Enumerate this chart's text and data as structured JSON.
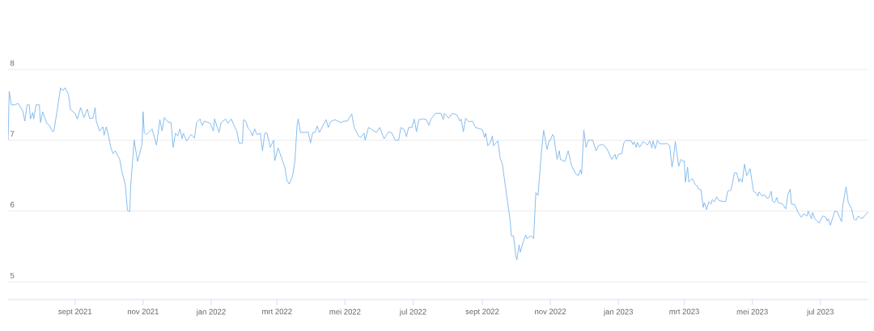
{
  "chart_data": {
    "type": "line",
    "x": [
      "2021-07-03",
      "2021-07-04",
      "2021-07-06",
      "2021-07-09",
      "2021-07-12",
      "2021-07-16",
      "2021-07-18",
      "2021-07-20",
      "2021-07-22",
      "2021-07-23",
      "2021-07-25",
      "2021-07-26",
      "2021-07-28",
      "2021-07-31",
      "2021-08-01",
      "2021-08-03",
      "2021-08-07",
      "2021-08-09",
      "2021-08-12",
      "2021-08-13",
      "2021-08-16",
      "2021-08-19",
      "2021-08-21",
      "2021-08-23",
      "2021-08-26",
      "2021-08-28",
      "2021-09-01",
      "2021-09-03",
      "2021-09-06",
      "2021-09-09",
      "2021-09-12",
      "2021-09-14",
      "2021-09-17",
      "2021-09-19",
      "2021-09-20",
      "2021-09-23",
      "2021-09-26",
      "2021-09-27",
      "2021-09-29",
      "2021-10-01",
      "2021-10-03",
      "2021-10-05",
      "2021-10-07",
      "2021-10-11",
      "2021-10-13",
      "2021-10-16",
      "2021-10-18",
      "2021-10-20",
      "2021-10-21",
      "2021-10-24",
      "2021-10-27",
      "2021-10-31",
      "2021-11-01",
      "2021-11-02",
      "2021-11-04",
      "2021-11-09",
      "2021-11-13",
      "2021-11-16",
      "2021-11-18",
      "2021-11-20",
      "2021-11-23",
      "2021-11-26",
      "2021-11-28",
      "2021-11-30",
      "2021-12-02",
      "2021-12-04",
      "2021-12-06",
      "2021-12-07",
      "2021-12-10",
      "2021-12-14",
      "2021-12-17",
      "2021-12-19",
      "2021-12-22",
      "2021-12-24",
      "2021-12-26",
      "2021-12-31",
      "2022-01-03",
      "2022-01-04",
      "2022-01-08",
      "2022-01-10",
      "2022-01-14",
      "2022-01-16",
      "2022-01-19",
      "2022-01-22",
      "2022-01-24",
      "2022-01-26",
      "2022-01-29",
      "2022-01-30",
      "2022-02-01",
      "2022-02-03",
      "2022-02-05",
      "2022-02-07",
      "2022-02-09",
      "2022-02-11",
      "2022-02-14",
      "2022-02-16",
      "2022-02-18",
      "2022-02-20",
      "2022-02-23",
      "2022-02-26",
      "2022-02-27",
      "2022-03-02",
      "2022-03-06",
      "2022-03-08",
      "2022-03-10",
      "2022-03-12",
      "2022-03-15",
      "2022-03-17",
      "2022-03-19",
      "2022-03-20",
      "2022-03-22",
      "2022-03-27",
      "2022-03-29",
      "2022-03-31",
      "2022-04-02",
      "2022-04-04",
      "2022-04-06",
      "2022-04-08",
      "2022-04-14",
      "2022-04-16",
      "2022-04-18",
      "2022-04-22",
      "2022-04-27",
      "2022-04-30",
      "2022-05-03",
      "2022-05-07",
      "2022-05-09",
      "2022-05-13",
      "2022-05-15",
      "2022-05-18",
      "2022-05-19",
      "2022-05-22",
      "2022-05-25",
      "2022-05-29",
      "2022-06-01",
      "2022-06-05",
      "2022-06-09",
      "2022-06-12",
      "2022-06-15",
      "2022-06-18",
      "2022-06-20",
      "2022-06-23",
      "2022-06-25",
      "2022-06-27",
      "2022-06-30",
      "2022-07-02",
      "2022-07-04",
      "2022-07-06",
      "2022-07-10",
      "2022-07-13",
      "2022-07-15",
      "2022-07-17",
      "2022-07-21",
      "2022-07-26",
      "2022-07-28",
      "2022-07-29",
      "2022-08-02",
      "2022-08-05",
      "2022-08-09",
      "2022-08-12",
      "2022-08-13",
      "2022-08-15",
      "2022-08-17",
      "2022-08-20",
      "2022-08-23",
      "2022-08-26",
      "2022-08-30",
      "2022-09-01",
      "2022-09-03",
      "2022-09-04",
      "2022-09-06",
      "2022-09-08",
      "2022-09-10",
      "2022-09-11",
      "2022-09-15",
      "2022-09-17",
      "2022-09-19",
      "2022-09-23",
      "2022-09-26",
      "2022-09-27",
      "2022-09-29",
      "2022-10-01",
      "2022-10-02",
      "2022-10-04",
      "2022-10-05",
      "2022-10-08",
      "2022-10-10",
      "2022-10-11",
      "2022-10-15",
      "2022-10-17",
      "2022-10-19",
      "2022-10-21",
      "2022-10-22",
      "2022-10-24",
      "2022-10-26",
      "2022-10-29",
      "2022-10-31",
      "2022-11-01",
      "2022-11-03",
      "2022-11-04",
      "2022-11-07",
      "2022-11-09",
      "2022-11-10",
      "2022-11-14",
      "2022-11-17",
      "2022-11-20",
      "2022-11-24",
      "2022-11-26",
      "2022-11-28",
      "2022-11-29",
      "2022-12-01",
      "2022-12-03",
      "2022-12-05",
      "2022-12-09",
      "2022-12-12",
      "2022-12-14",
      "2022-12-17",
      "2022-12-19",
      "2022-12-22",
      "2022-12-26",
      "2022-12-29",
      "2022-12-30",
      "2023-01-01",
      "2023-01-04",
      "2023-01-06",
      "2023-01-08",
      "2023-01-11",
      "2023-01-12",
      "2023-01-14",
      "2023-01-15",
      "2023-01-17",
      "2023-01-18",
      "2023-01-20",
      "2023-01-23",
      "2023-01-25",
      "2023-01-27",
      "2023-01-29",
      "2023-01-31",
      "2023-02-01",
      "2023-02-03",
      "2023-02-05",
      "2023-02-07",
      "2023-02-12",
      "2023-02-13",
      "2023-02-16",
      "2023-02-18",
      "2023-02-19",
      "2023-02-21",
      "2023-02-24",
      "2023-02-26",
      "2023-02-28",
      "2023-03-01",
      "2023-03-02",
      "2023-03-04",
      "2023-03-05",
      "2023-03-08",
      "2023-03-11",
      "2023-03-13",
      "2023-03-14",
      "2023-03-16",
      "2023-03-18",
      "2023-03-19",
      "2023-03-21",
      "2023-03-23",
      "2023-03-25",
      "2023-03-26",
      "2023-03-28",
      "2023-03-30",
      "2023-04-01",
      "2023-04-03",
      "2023-04-07",
      "2023-04-09",
      "2023-04-12",
      "2023-04-15",
      "2023-04-17",
      "2023-04-19",
      "2023-04-20",
      "2023-04-22",
      "2023-04-24",
      "2023-04-26",
      "2023-04-29",
      "2023-05-02",
      "2023-05-04",
      "2023-05-06",
      "2023-05-07",
      "2023-05-10",
      "2023-05-12",
      "2023-05-14",
      "2023-05-16",
      "2023-05-18",
      "2023-05-19",
      "2023-05-21",
      "2023-05-23",
      "2023-05-24",
      "2023-05-28",
      "2023-05-31",
      "2023-06-02",
      "2023-06-04",
      "2023-06-05",
      "2023-06-08",
      "2023-06-11",
      "2023-06-14",
      "2023-06-16",
      "2023-06-19",
      "2023-06-20",
      "2023-06-23",
      "2023-06-24",
      "2023-06-26",
      "2023-06-30",
      "2023-07-03",
      "2023-07-06",
      "2023-07-07",
      "2023-07-08",
      "2023-07-10",
      "2023-07-14",
      "2023-07-16",
      "2023-07-20",
      "2023-07-21",
      "2023-07-24",
      "2023-07-26",
      "2023-07-29",
      "2023-07-31",
      "2023-08-02",
      "2023-08-04",
      "2023-08-06",
      "2023-08-08",
      "2023-08-10",
      "2023-08-13"
    ],
    "series": [
      {
        "color": "#7cb5ec",
        "values": [
          7.0,
          7.69,
          7.5,
          7.5,
          7.52,
          7.42,
          7.27,
          7.5,
          7.5,
          7.3,
          7.39,
          7.3,
          7.5,
          7.5,
          7.25,
          7.4,
          7.23,
          7.21,
          7.12,
          7.13,
          7.42,
          7.74,
          7.7,
          7.74,
          7.65,
          7.43,
          7.38,
          7.3,
          7.46,
          7.32,
          7.44,
          7.31,
          7.31,
          7.46,
          7.27,
          7.13,
          7.19,
          7.07,
          7.19,
          7.06,
          6.9,
          6.81,
          6.85,
          6.73,
          6.56,
          6.37,
          6.01,
          5.99,
          6.39,
          7.0,
          6.7,
          6.94,
          7.4,
          7.11,
          7.08,
          7.16,
          6.93,
          7.29,
          7.13,
          7.32,
          7.26,
          7.25,
          6.9,
          7.1,
          7.06,
          7.16,
          7.02,
          7.1,
          6.99,
          7.08,
          7.03,
          7.25,
          7.3,
          7.21,
          7.27,
          7.24,
          7.13,
          7.3,
          7.11,
          7.25,
          7.3,
          7.24,
          7.3,
          7.19,
          7.13,
          6.96,
          6.96,
          7.29,
          7.27,
          7.17,
          7.14,
          7.06,
          7.16,
          7.08,
          7.1,
          6.85,
          7.1,
          7.1,
          6.9,
          7.0,
          6.71,
          6.89,
          6.71,
          6.62,
          6.43,
          6.38,
          6.5,
          6.7,
          7.21,
          7.3,
          7.11,
          7.11,
          7.12,
          6.96,
          7.11,
          7.11,
          7.2,
          7.11,
          7.29,
          7.18,
          7.26,
          7.29,
          7.25,
          7.27,
          7.27,
          7.37,
          7.19,
          7.06,
          7.04,
          7.1,
          7.0,
          7.18,
          7.15,
          7.11,
          7.18,
          7.02,
          7.12,
          7.1,
          7.0,
          7.0,
          7.18,
          7.15,
          7.05,
          7.18,
          7.18,
          7.3,
          7.12,
          7.29,
          7.3,
          7.29,
          7.21,
          7.3,
          7.38,
          7.38,
          7.29,
          7.38,
          7.31,
          7.38,
          7.36,
          7.27,
          7.3,
          7.12,
          7.31,
          7.26,
          7.27,
          7.18,
          7.16,
          7.15,
          7.04,
          7.1,
          6.92,
          6.96,
          7.06,
          6.92,
          6.99,
          6.75,
          6.66,
          6.2,
          5.86,
          5.65,
          5.65,
          5.36,
          5.31,
          5.52,
          5.42,
          5.58,
          5.66,
          5.61,
          5.65,
          5.61,
          6.26,
          6.22,
          6.43,
          6.83,
          7.14,
          6.87,
          7.0,
          7.0,
          7.08,
          7.06,
          6.73,
          6.85,
          6.73,
          6.7,
          6.85,
          6.64,
          6.52,
          6.5,
          6.58,
          6.52,
          7.14,
          6.9,
          7.0,
          7.0,
          6.85,
          6.92,
          6.94,
          6.93,
          6.87,
          6.73,
          6.8,
          6.73,
          6.8,
          6.81,
          6.97,
          7.0,
          6.99,
          7.0,
          6.94,
          6.98,
          6.9,
          6.97,
          6.9,
          6.98,
          6.96,
          6.93,
          6.99,
          6.89,
          6.99,
          6.88,
          7.0,
          6.95,
          6.95,
          6.96,
          6.92,
          6.62,
          6.7,
          6.98,
          6.63,
          6.73,
          6.7,
          6.71,
          6.41,
          6.62,
          6.41,
          6.46,
          6.37,
          6.35,
          6.31,
          6.3,
          6.05,
          6.12,
          6.02,
          6.13,
          6.1,
          6.16,
          6.13,
          6.2,
          6.15,
          6.14,
          6.13,
          6.28,
          6.3,
          6.54,
          6.54,
          6.41,
          6.46,
          6.41,
          6.66,
          6.5,
          6.6,
          6.28,
          6.26,
          6.21,
          6.27,
          6.21,
          6.23,
          6.18,
          6.19,
          6.28,
          6.14,
          6.12,
          6.19,
          6.12,
          6.1,
          6.03,
          6.24,
          6.31,
          6.1,
          6.09,
          5.98,
          5.91,
          5.96,
          5.93,
          6.0,
          5.89,
          5.98,
          5.89,
          5.83,
          5.93,
          5.91,
          5.86,
          5.89,
          5.8,
          6.0,
          5.99,
          5.85,
          6.07,
          6.34,
          6.12,
          6.03,
          5.89,
          5.87,
          5.93,
          5.9,
          5.9,
          5.94,
          5.99
        ]
      }
    ],
    "xlim": [
      "2021-07-03",
      "2023-08-13"
    ],
    "xticks": [
      {
        "value": "2021-09-01",
        "label": "sept 2021"
      },
      {
        "value": "2021-11-01",
        "label": "nov 2021"
      },
      {
        "value": "2022-01-01",
        "label": "jan 2022"
      },
      {
        "value": "2022-03-01",
        "label": "mrt 2022"
      },
      {
        "value": "2022-05-01",
        "label": "mei 2022"
      },
      {
        "value": "2022-07-01",
        "label": "jul 2022"
      },
      {
        "value": "2022-09-01",
        "label": "sept 2022"
      },
      {
        "value": "2022-11-01",
        "label": "nov 2022"
      },
      {
        "value": "2023-01-01",
        "label": "jan 2023"
      },
      {
        "value": "2023-03-01",
        "label": "mrt 2023"
      },
      {
        "value": "2023-05-01",
        "label": "mei 2023"
      },
      {
        "value": "2023-07-01",
        "label": "jul 2023"
      }
    ],
    "ylim": [
      4.75,
      8
    ],
    "yticks": [
      5,
      6,
      7,
      8
    ],
    "grid": "y",
    "line_style": "solid"
  }
}
